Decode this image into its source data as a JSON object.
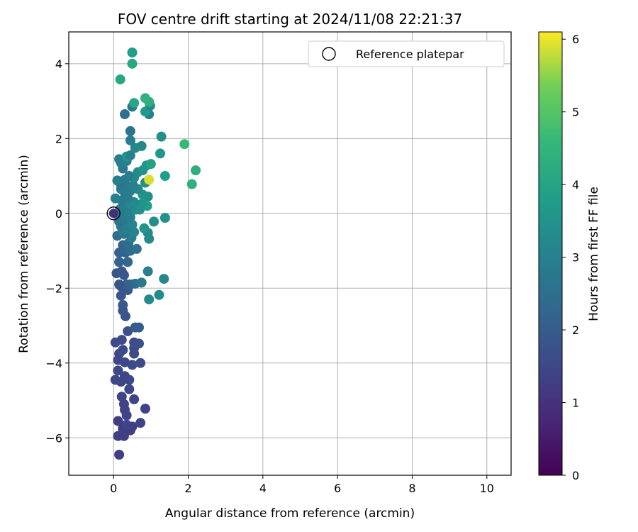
{
  "chart_data": {
    "type": "scatter",
    "title": "FOV centre drift starting at 2024/11/08 22:21:37",
    "xlabel": "Angular distance from reference (arcmin)",
    "ylabel": "Rotation from reference (arcmin)",
    "xlim": [
      -1.2,
      10.65
    ],
    "ylim": [
      -7.0,
      4.85
    ],
    "x_ticks": [
      0,
      2,
      4,
      6,
      8,
      10
    ],
    "y_ticks": [
      -6,
      -4,
      -2,
      0,
      2,
      4
    ],
    "grid": true,
    "legend": {
      "placement": "top-right",
      "entries": [
        "Reference platepar"
      ]
    },
    "reference_point": {
      "x": 0,
      "y": 0
    },
    "colorbar": {
      "label": "Hours from first FF file",
      "range": [
        0,
        6.1
      ],
      "ticks": [
        0,
        1,
        2,
        3,
        4,
        5,
        6
      ],
      "colormap": "viridis"
    },
    "points": [
      {
        "x": 0.15,
        "y": -6.45,
        "h": 1.3
      },
      {
        "x": 0.12,
        "y": -5.95,
        "h": 1.3
      },
      {
        "x": 0.28,
        "y": -5.95,
        "h": 1.3
      },
      {
        "x": 0.25,
        "y": -5.75,
        "h": 1.3
      },
      {
        "x": 0.45,
        "y": -5.8,
        "h": 1.3
      },
      {
        "x": 0.5,
        "y": -5.7,
        "h": 1.3
      },
      {
        "x": 0.35,
        "y": -5.65,
        "h": 1.4
      },
      {
        "x": 0.72,
        "y": -5.6,
        "h": 1.4
      },
      {
        "x": 0.12,
        "y": -5.55,
        "h": 1.3
      },
      {
        "x": 0.35,
        "y": -5.4,
        "h": 1.4
      },
      {
        "x": 0.3,
        "y": -5.25,
        "h": 1.4
      },
      {
        "x": 0.85,
        "y": -5.22,
        "h": 1.4
      },
      {
        "x": 0.28,
        "y": -5.1,
        "h": 1.4
      },
      {
        "x": 0.55,
        "y": -4.97,
        "h": 1.4
      },
      {
        "x": 0.22,
        "y": -4.9,
        "h": 1.4
      },
      {
        "x": 0.42,
        "y": -4.7,
        "h": 1.5
      },
      {
        "x": 0.2,
        "y": -4.5,
        "h": 1.5
      },
      {
        "x": 0.05,
        "y": -4.45,
        "h": 1.5
      },
      {
        "x": 0.42,
        "y": -4.45,
        "h": 1.5
      },
      {
        "x": 0.3,
        "y": -4.35,
        "h": 1.5
      },
      {
        "x": 0.12,
        "y": -4.2,
        "h": 1.5
      },
      {
        "x": 0.5,
        "y": -4.05,
        "h": 1.6
      },
      {
        "x": 0.3,
        "y": -3.98,
        "h": 1.5
      },
      {
        "x": 0.72,
        "y": -4.0,
        "h": 1.6
      },
      {
        "x": 0.12,
        "y": -3.92,
        "h": 1.5
      },
      {
        "x": 0.15,
        "y": -3.75,
        "h": 1.5
      },
      {
        "x": 0.55,
        "y": -3.75,
        "h": 1.6
      },
      {
        "x": 0.25,
        "y": -3.65,
        "h": 1.6
      },
      {
        "x": 0.55,
        "y": -3.6,
        "h": 1.6
      },
      {
        "x": 0.05,
        "y": -3.45,
        "h": 1.6
      },
      {
        "x": 0.55,
        "y": -3.45,
        "h": 1.6
      },
      {
        "x": 0.22,
        "y": -3.38,
        "h": 1.6
      },
      {
        "x": 0.68,
        "y": -3.48,
        "h": 1.7
      },
      {
        "x": 0.38,
        "y": -3.15,
        "h": 1.7
      },
      {
        "x": 0.58,
        "y": -3.05,
        "h": 2.0
      },
      {
        "x": 0.68,
        "y": -3.05,
        "h": 2.0
      },
      {
        "x": 0.32,
        "y": -2.75,
        "h": 1.8
      },
      {
        "x": 0.25,
        "y": -2.6,
        "h": 1.9
      },
      {
        "x": 0.25,
        "y": -2.45,
        "h": 1.9
      },
      {
        "x": 0.95,
        "y": -2.3,
        "h": 3.3
      },
      {
        "x": 0.2,
        "y": -2.2,
        "h": 1.9
      },
      {
        "x": 1.22,
        "y": -2.18,
        "h": 3.3
      },
      {
        "x": 0.38,
        "y": -2.05,
        "h": 1.9
      },
      {
        "x": 0.2,
        "y": -1.95,
        "h": 1.8
      },
      {
        "x": 0.35,
        "y": -1.9,
        "h": 2.1
      },
      {
        "x": 0.45,
        "y": -1.9,
        "h": 2.2
      },
      {
        "x": 0.58,
        "y": -1.88,
        "h": 2.4
      },
      {
        "x": 0.75,
        "y": -1.85,
        "h": 2.8
      },
      {
        "x": 0.15,
        "y": -1.9,
        "h": 1.8
      },
      {
        "x": 1.35,
        "y": -1.75,
        "h": 3.2
      },
      {
        "x": 0.28,
        "y": -1.65,
        "h": 1.9
      },
      {
        "x": 0.08,
        "y": -1.6,
        "h": 1.8
      },
      {
        "x": 0.92,
        "y": -1.55,
        "h": 3.0
      },
      {
        "x": 0.22,
        "y": -1.55,
        "h": 1.9
      },
      {
        "x": 0.15,
        "y": -1.3,
        "h": 2.2
      },
      {
        "x": 0.38,
        "y": -1.3,
        "h": 2.3
      },
      {
        "x": 0.15,
        "y": -1.05,
        "h": 2.1
      },
      {
        "x": 0.32,
        "y": -1.05,
        "h": 2.2
      },
      {
        "x": 0.45,
        "y": -1.0,
        "h": 2.4
      },
      {
        "x": 0.62,
        "y": -0.95,
        "h": 2.6
      },
      {
        "x": 0.25,
        "y": -0.85,
        "h": 2.2
      },
      {
        "x": 0.4,
        "y": -0.8,
        "h": 2.4
      },
      {
        "x": 0.48,
        "y": -0.65,
        "h": 3.0
      },
      {
        "x": 0.95,
        "y": -0.68,
        "h": 3.2
      },
      {
        "x": 0.1,
        "y": -0.6,
        "h": 2.4
      },
      {
        "x": 0.28,
        "y": -0.55,
        "h": 2.7
      },
      {
        "x": 0.92,
        "y": -0.52,
        "h": 3.2
      },
      {
        "x": 0.55,
        "y": -0.5,
        "h": 3.1
      },
      {
        "x": 0.25,
        "y": -0.45,
        "h": 2.9
      },
      {
        "x": 0.4,
        "y": -0.4,
        "h": 3.0
      },
      {
        "x": 0.82,
        "y": -0.4,
        "h": 3.6
      },
      {
        "x": 0.2,
        "y": -0.35,
        "h": 2.8
      },
      {
        "x": 0.35,
        "y": -0.3,
        "h": 2.9
      },
      {
        "x": 0.5,
        "y": -0.3,
        "h": 3.1
      },
      {
        "x": 1.08,
        "y": -0.22,
        "h": 3.4
      },
      {
        "x": 0.15,
        "y": -0.22,
        "h": 2.6
      },
      {
        "x": 0.3,
        "y": -0.15,
        "h": 2.8
      },
      {
        "x": 1.38,
        "y": -0.12,
        "h": 3.5
      },
      {
        "x": 0.45,
        "y": -0.1,
        "h": 3.0
      },
      {
        "x": 0.12,
        "y": -0.05,
        "h": 2.7
      },
      {
        "x": 0.25,
        "y": 0.0,
        "h": 2.8
      },
      {
        "x": 0.38,
        "y": 0.05,
        "h": 3.0
      },
      {
        "x": 0.6,
        "y": 0.1,
        "h": 3.3
      },
      {
        "x": 0.18,
        "y": 0.12,
        "h": 2.8
      },
      {
        "x": 0.7,
        "y": 0.1,
        "h": 3.4
      },
      {
        "x": 0.32,
        "y": 0.2,
        "h": 2.9
      },
      {
        "x": 0.9,
        "y": 0.2,
        "h": 3.8
      },
      {
        "x": 0.75,
        "y": 0.25,
        "h": 3.5
      },
      {
        "x": 0.45,
        "y": 0.25,
        "h": 3.1
      },
      {
        "x": 0.55,
        "y": 0.3,
        "h": 3.2
      },
      {
        "x": 0.22,
        "y": 0.35,
        "h": 2.8
      },
      {
        "x": 0.05,
        "y": 0.4,
        "h": 3.0
      },
      {
        "x": 0.38,
        "y": 0.42,
        "h": 2.9
      },
      {
        "x": 0.92,
        "y": 0.45,
        "h": 3.4
      },
      {
        "x": 0.78,
        "y": 0.5,
        "h": 3.5
      },
      {
        "x": 0.3,
        "y": 0.55,
        "h": 2.8
      },
      {
        "x": 0.45,
        "y": 0.6,
        "h": 2.9
      },
      {
        "x": 0.2,
        "y": 0.65,
        "h": 2.8
      },
      {
        "x": 0.65,
        "y": 0.65,
        "h": 3.2
      },
      {
        "x": 0.35,
        "y": 0.72,
        "h": 2.8
      },
      {
        "x": 0.52,
        "y": 0.75,
        "h": 3.0
      },
      {
        "x": 0.18,
        "y": 0.8,
        "h": 2.7
      },
      {
        "x": 0.85,
        "y": 0.82,
        "h": 3.4
      },
      {
        "x": 0.1,
        "y": 0.88,
        "h": 3.0
      },
      {
        "x": 0.95,
        "y": 0.9,
        "h": 5.9
      },
      {
        "x": 0.3,
        "y": 0.9,
        "h": 2.8
      },
      {
        "x": 0.55,
        "y": 0.95,
        "h": 3.2
      },
      {
        "x": 2.1,
        "y": 0.78,
        "h": 4.4
      },
      {
        "x": 1.38,
        "y": 1.0,
        "h": 3.8
      },
      {
        "x": 0.42,
        "y": 1.0,
        "h": 2.9
      },
      {
        "x": 0.65,
        "y": 1.1,
        "h": 3.2
      },
      {
        "x": 0.78,
        "y": 1.15,
        "h": 3.5
      },
      {
        "x": 2.2,
        "y": 1.15,
        "h": 4.3
      },
      {
        "x": 0.25,
        "y": 1.2,
        "h": 2.8
      },
      {
        "x": 0.88,
        "y": 1.28,
        "h": 3.6
      },
      {
        "x": 1.0,
        "y": 1.32,
        "h": 3.9
      },
      {
        "x": 0.2,
        "y": 1.35,
        "h": 2.9
      },
      {
        "x": 0.35,
        "y": 1.4,
        "h": 3.0
      },
      {
        "x": 0.15,
        "y": 1.45,
        "h": 2.9
      },
      {
        "x": 0.35,
        "y": 1.52,
        "h": 3.6
      },
      {
        "x": 0.45,
        "y": 1.55,
        "h": 2.9
      },
      {
        "x": 1.25,
        "y": 1.6,
        "h": 3.6
      },
      {
        "x": 0.58,
        "y": 1.75,
        "h": 3.2
      },
      {
        "x": 0.75,
        "y": 1.8,
        "h": 3.2
      },
      {
        "x": 1.9,
        "y": 1.85,
        "h": 4.6
      },
      {
        "x": 0.45,
        "y": 1.95,
        "h": 2.9
      },
      {
        "x": 1.28,
        "y": 2.05,
        "h": 3.4
      },
      {
        "x": 0.45,
        "y": 2.2,
        "h": 2.6
      },
      {
        "x": 0.3,
        "y": 2.65,
        "h": 2.5
      },
      {
        "x": 0.95,
        "y": 2.65,
        "h": 3.0
      },
      {
        "x": 0.85,
        "y": 2.72,
        "h": 3.7
      },
      {
        "x": 0.5,
        "y": 2.85,
        "h": 2.8
      },
      {
        "x": 0.98,
        "y": 2.88,
        "h": 3.2
      },
      {
        "x": 0.55,
        "y": 2.95,
        "h": 4.1
      },
      {
        "x": 0.95,
        "y": 2.98,
        "h": 4.3
      },
      {
        "x": 0.85,
        "y": 3.08,
        "h": 4.4
      },
      {
        "x": 0.18,
        "y": 3.58,
        "h": 4.1
      },
      {
        "x": 0.5,
        "y": 4.0,
        "h": 4.1
      },
      {
        "x": 0.5,
        "y": 4.3,
        "h": 3.8
      }
    ]
  }
}
